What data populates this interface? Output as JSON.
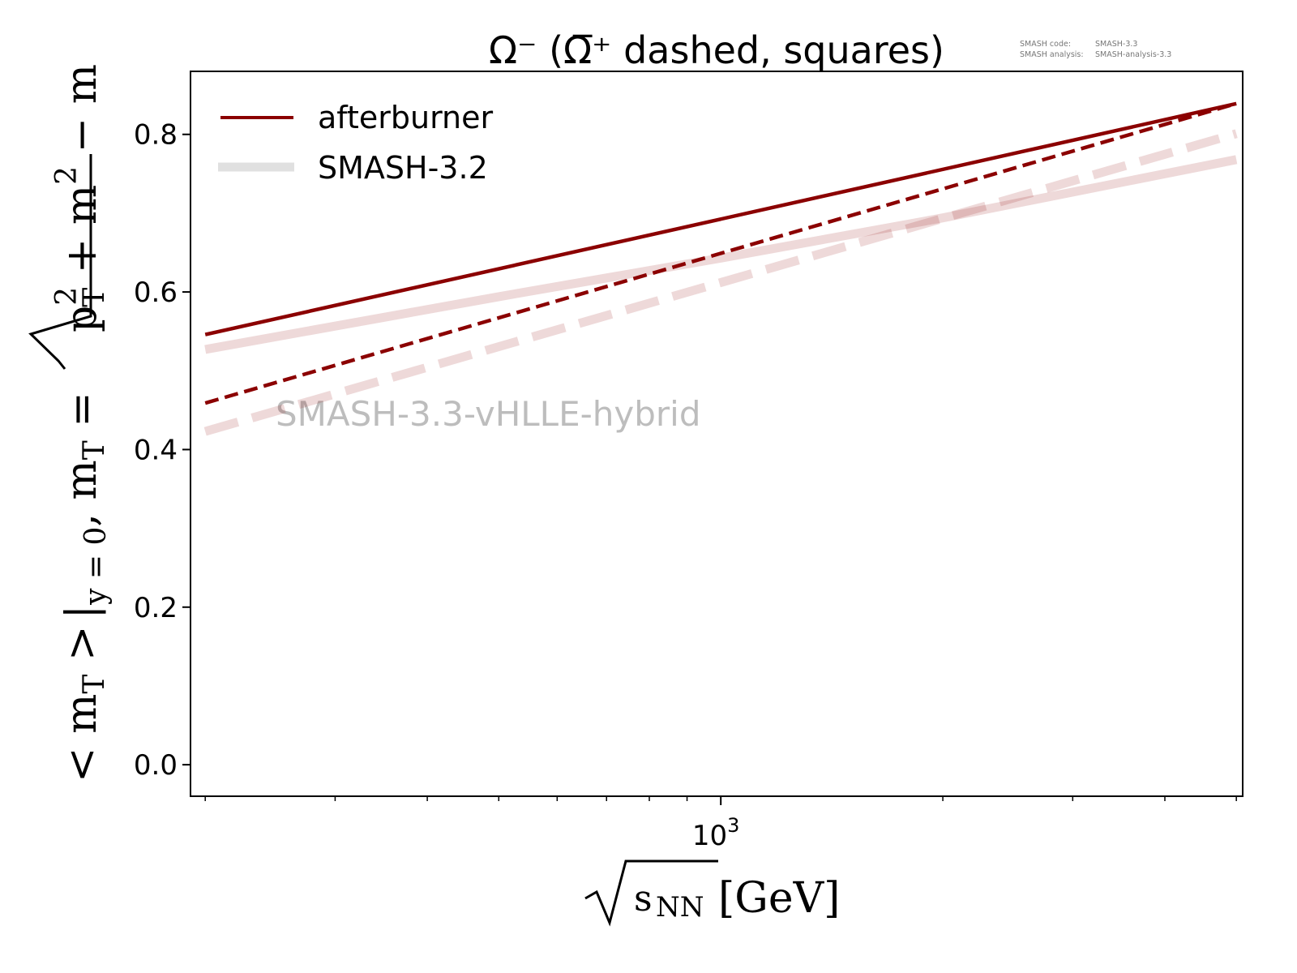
{
  "chart_data": {
    "type": "line",
    "title_main": "Ω⁻ (Ω̅⁺ dashed, squares)",
    "xscale": "log",
    "xlim": [
      191,
      5100
    ],
    "ylim": [
      -0.04,
      0.88
    ],
    "grid": false,
    "x_major_ticks": [
      {
        "value": 1000,
        "label_base": "10",
        "label_exp": "3"
      }
    ],
    "x_minor_ticks": [
      200,
      300,
      400,
      500,
      600,
      700,
      800,
      900,
      2000,
      3000,
      4000,
      5000
    ],
    "y_ticks": [
      {
        "value": 0.0,
        "label": "0.0"
      },
      {
        "value": 0.2,
        "label": "0.2"
      },
      {
        "value": 0.4,
        "label": "0.4"
      },
      {
        "value": 0.6,
        "label": "0.6"
      },
      {
        "value": 0.8,
        "label": "0.8"
      }
    ],
    "xlabel": {
      "sqrt_arg": "s",
      "sub": "NN",
      "unit": "[GeV]"
    },
    "ylabel": {
      "lhs": "< m",
      "lhs_sub": "T",
      "gt": " >",
      "bar_sub": "y = 0",
      "comma": ",  m",
      "eq": " = ",
      "root_p": "p",
      "root_p_sub": "T",
      "root_p_sup": "2",
      "plus": " + m",
      "m_sup": "2",
      "minus": " − m"
    },
    "legend": {
      "placement": "upper-left",
      "entries": [
        {
          "label": "afterburner",
          "color": "#8b0000"
        },
        {
          "label": "SMASH-3.2",
          "color": "#e0e0e0"
        }
      ]
    },
    "series": [
      {
        "name": "afterburner (Ω⁻)",
        "style": "solid",
        "color": "#8b0000",
        "opacity": 1,
        "x": [
          200,
          5000
        ],
        "y": [
          0.546,
          0.839
        ]
      },
      {
        "name": "afterburner (Ω̅⁺)",
        "style": "dashed",
        "color": "#8b0000",
        "opacity": 1,
        "x": [
          200,
          5000
        ],
        "y": [
          0.459,
          0.839
        ]
      },
      {
        "name": "SMASH-3.2 (Ω⁻)",
        "style": "solid",
        "color": "#8b0000",
        "opacity": 0.15,
        "x": [
          200,
          500,
          1000,
          2000,
          5000
        ],
        "y": [
          0.527,
          0.594,
          0.643,
          0.694,
          0.768
        ]
      },
      {
        "name": "SMASH-3.2 (Ω̅⁺)",
        "style": "dashed",
        "color": "#8b0000",
        "opacity": 0.15,
        "x": [
          200,
          5000
        ],
        "y": [
          0.423,
          0.801
        ]
      }
    ],
    "annotations": {
      "watermark": "SMASH-3.3-vHLLE-hybrid",
      "meta_line1_key": "SMASH code:",
      "meta_line1_val": "SMASH-3.3",
      "meta_line2_key": "SMASH analysis:",
      "meta_line2_val": "SMASH-analysis-3.3"
    }
  }
}
